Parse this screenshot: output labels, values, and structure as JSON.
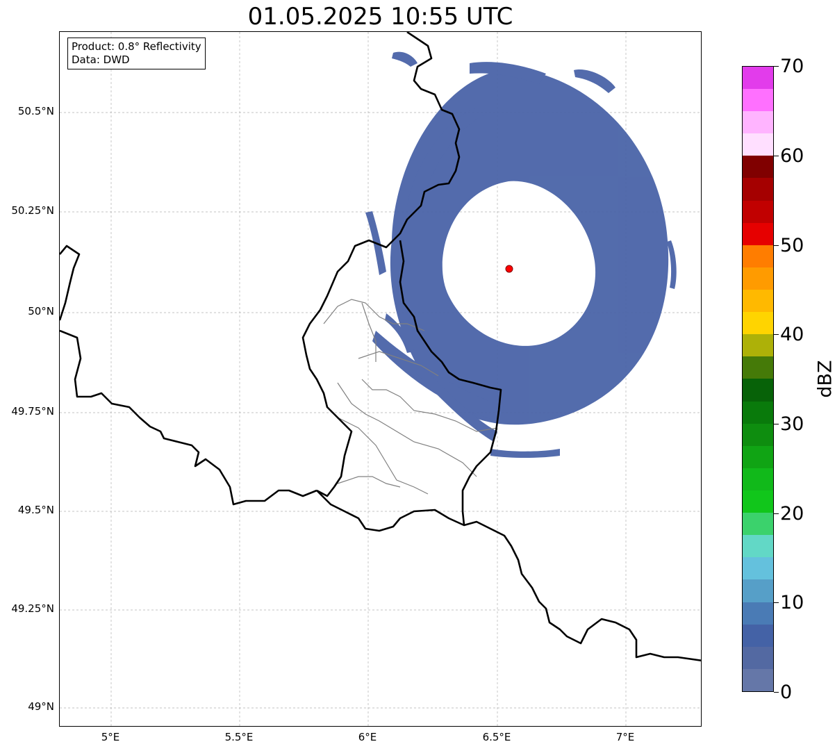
{
  "title": "01.05.2025 10:55 UTC",
  "info_box": {
    "product": "Product: 0.8° Reflectivity",
    "source": "Data: DWD"
  },
  "lat_labels": [
    "50.5°N",
    "50.25°N",
    "50°N",
    "49.75°N",
    "49.5°N",
    "49.25°N",
    "49°N"
  ],
  "lon_labels": [
    "5°E",
    "5.5°E",
    "6°E",
    "6.5°E",
    "7°E"
  ],
  "colorbar": {
    "label": "dBZ",
    "ticks": [
      "0",
      "10",
      "20",
      "30",
      "40",
      "50",
      "60",
      "70"
    ],
    "colors": [
      "#6577a8",
      "#5369a2",
      "#4462a6",
      "#4a7bb5",
      "#569fc8",
      "#64c1dd",
      "#62d8c6",
      "#3bd26c",
      "#11c61b",
      "#11b91a",
      "#10a414",
      "#0e8d0f",
      "#097a0b",
      "#076208",
      "#457a08",
      "#adb108",
      "#ffd400",
      "#ffb900",
      "#ff9b00",
      "#ff7d00",
      "#e60000",
      "#c10000",
      "#a50000",
      "#800000",
      "#ffdfff",
      "#ffb4ff",
      "#ff70ff",
      "#e23ceb"
    ]
  },
  "radar": {
    "lon": 6.55,
    "lat": 50.11,
    "marker_color": "#ff0000",
    "echo_color": "#4a64a8"
  },
  "map_extent": {
    "lon_min": 4.8,
    "lon_max": 7.3,
    "lat_min": 48.95,
    "lat_max": 50.72
  }
}
